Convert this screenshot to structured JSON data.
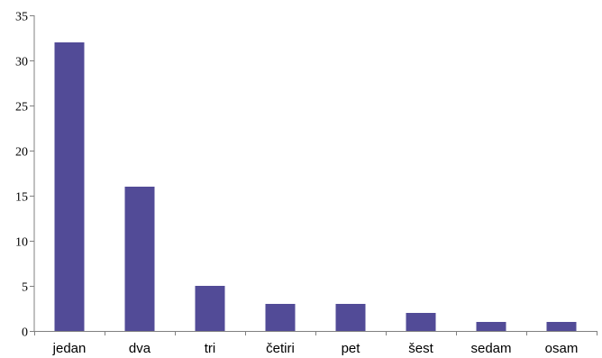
{
  "chart_data": {
    "type": "bar",
    "categories": [
      "jedan",
      "dva",
      "tri",
      "četiri",
      "pet",
      "šest",
      "sedam",
      "osam"
    ],
    "values": [
      32,
      16,
      5,
      3,
      3,
      2,
      1,
      1
    ],
    "title": "",
    "xlabel": "",
    "ylabel": "",
    "ylim": [
      0,
      35
    ],
    "yticks": [
      0,
      5,
      10,
      15,
      20,
      25,
      30,
      35
    ],
    "grid": false,
    "legend": "none",
    "bar_color": "#524b97",
    "axis_color": "#808080"
  }
}
